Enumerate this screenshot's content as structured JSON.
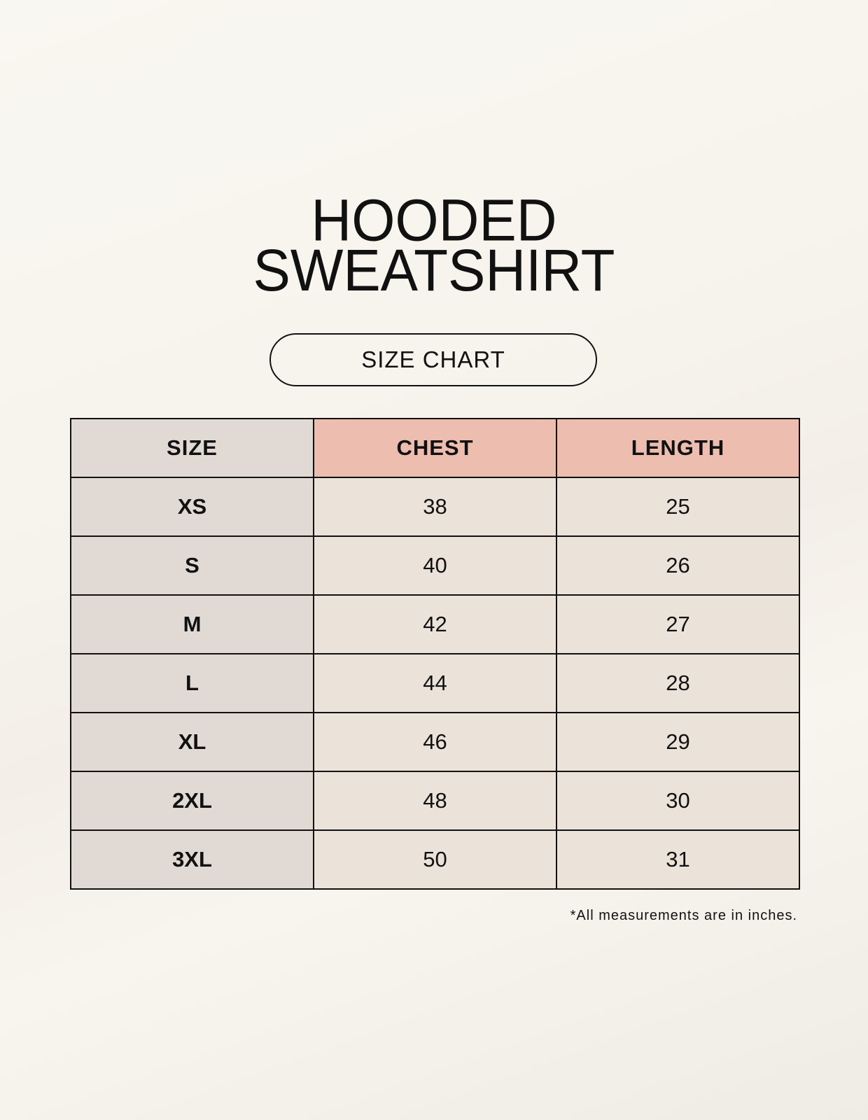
{
  "title": {
    "line1": "HOODED",
    "line2": "SWEATSHIRT"
  },
  "badge": "SIZE CHART",
  "table": {
    "headers": [
      "SIZE",
      "CHEST",
      "LENGTH"
    ],
    "rows": [
      [
        "XS",
        "38",
        "25"
      ],
      [
        "S",
        "40",
        "26"
      ],
      [
        "M",
        "42",
        "27"
      ],
      [
        "L",
        "44",
        "28"
      ],
      [
        "XL",
        "46",
        "29"
      ],
      [
        "2XL",
        "48",
        "30"
      ],
      [
        "3XL",
        "50",
        "31"
      ]
    ]
  },
  "footnote": "*All measurements are in inches.",
  "colors": {
    "size_column": "#e0d9d4",
    "header_accent": "#edbdb0",
    "cell": "#ebe3da"
  }
}
